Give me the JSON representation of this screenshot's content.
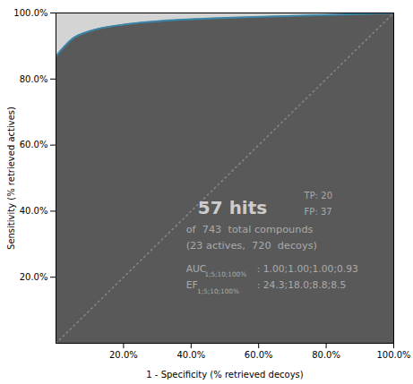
{
  "chart_data": {
    "type": "area",
    "x": [
      0.0,
      0.05,
      0.1,
      0.2,
      0.3,
      0.5,
      0.7,
      0.9,
      1.0
    ],
    "values": [
      0.869,
      0.923,
      0.945,
      0.965,
      0.975,
      0.985,
      0.991,
      0.997,
      1.0
    ],
    "color": "#3a86a8",
    "colors": [
      "#595959",
      "#d4d4d4"
    ],
    "xlabel": "1 - Specificity (% retrieved decoys)",
    "ylabel": "Sensitivity (% retrieved actives)",
    "xlim": [
      0,
      1
    ],
    "ylim": [
      0,
      1
    ],
    "xticks": [
      {
        "value": 0.2,
        "label": "20.0%"
      },
      {
        "value": 0.4,
        "label": "40.0%"
      },
      {
        "value": 0.6,
        "label": "60.0%"
      },
      {
        "value": 0.8,
        "label": "80.0%"
      },
      {
        "value": 1.0,
        "label": "100.0%"
      }
    ],
    "yticks": [
      {
        "value": 0.2,
        "label": "20.0%"
      },
      {
        "value": 0.4,
        "label": "40.0%"
      },
      {
        "value": 0.6,
        "label": "60.0%"
      },
      {
        "value": 0.8,
        "label": "80.0%"
      },
      {
        "value": 1.0,
        "label": "100.0%"
      }
    ],
    "annotations": [
      "57 hits",
      "TP: 20",
      "FP: 37",
      "of  743  total compounds",
      "(23 actives,  720  decoys)",
      "AUC",
      "1;5;10;100%",
      ": 1.00;1.00;1.00;0.93",
      "EF",
      "1;5;10;100%",
      ": 24.3;18.0;8.8;8.5"
    ]
  }
}
